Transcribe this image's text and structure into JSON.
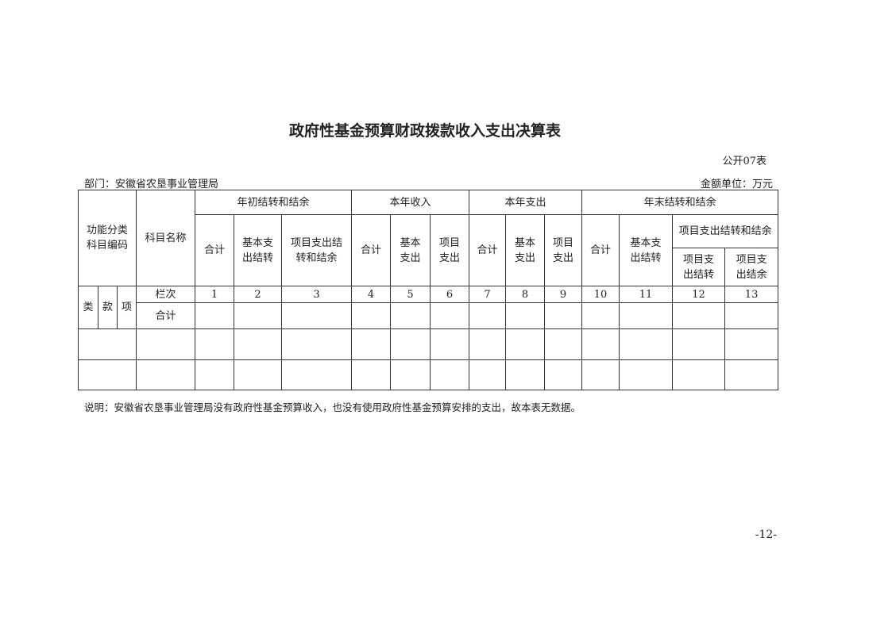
{
  "title": "政府性基金预算财政拨款收入支出决算表",
  "form_number": "公开07表",
  "department": "部门：安徽省农垦事业管理局",
  "unit": "金额单位：万元",
  "table": {
    "function_code": "功能分类科目编码",
    "subject_name": "科目名称",
    "groups": [
      "年初结转和结余",
      "本年收入",
      "本年支出",
      "年末结转和结余"
    ],
    "sub_headers": [
      "合计",
      "基本支出结转",
      "项目支出结转和结余",
      "合计",
      "基本支出",
      "项目支出",
      "合计",
      "基本支出",
      "项目支出",
      "合计",
      "基本支出结转",
      "项目支出结转和结余"
    ],
    "sub_sub_headers": [
      "项目支出结转",
      "项目支出结余"
    ],
    "code_parts": [
      "类",
      "款",
      "项"
    ],
    "column_index_label": "栏次",
    "column_numbers": [
      "1",
      "2",
      "3",
      "4",
      "5",
      "6",
      "7",
      "8",
      "9",
      "10",
      "11",
      "12",
      "13"
    ],
    "total_label": "合计"
  },
  "note": "说明：安徽省农垦事业管理局没有政府性基金预算收入，也没有使用政府性基金预算安排的支出，故本表无数据。",
  "page_number": "-12-"
}
